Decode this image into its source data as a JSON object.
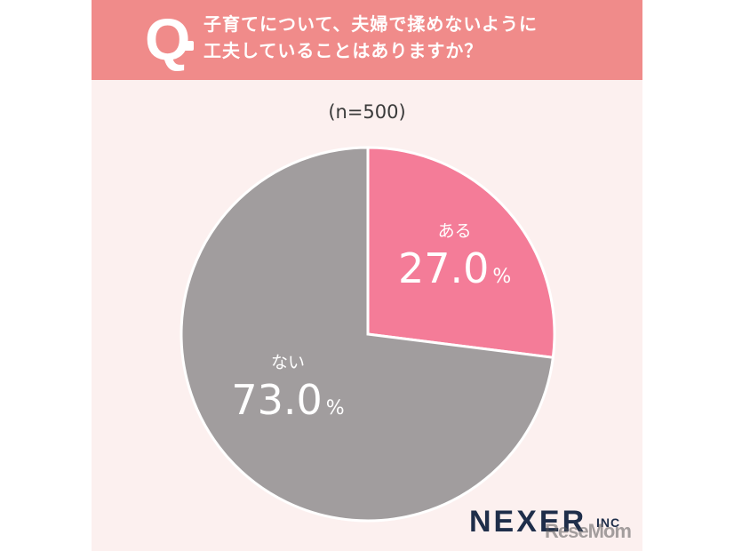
{
  "header": {
    "q_mark": "Q",
    "question_line1": "子育てについて、夫婦で揉めないように",
    "question_line2": "工夫していることはありますか？"
  },
  "sample_label": "(n=500)",
  "brand": {
    "name": "NEXER",
    "suffix": "INC"
  },
  "watermark": "ReseMom",
  "colors": {
    "header_bg": "#f08b8a",
    "card_bg": "#fcf0ef",
    "yes": "#f47c98",
    "no": "#a19d9e"
  },
  "chart_data": {
    "type": "pie",
    "title": "子育てについて、夫婦で揉めないように工夫していることはありますか？",
    "n": "(n=500)",
    "slices": [
      {
        "label": "ある",
        "value": 27.0,
        "display": "27.0",
        "color": "#f47c98"
      },
      {
        "label": "ない",
        "value": 73.0,
        "display": "73.0",
        "color": "#a19d9e"
      }
    ],
    "unit": "%"
  }
}
